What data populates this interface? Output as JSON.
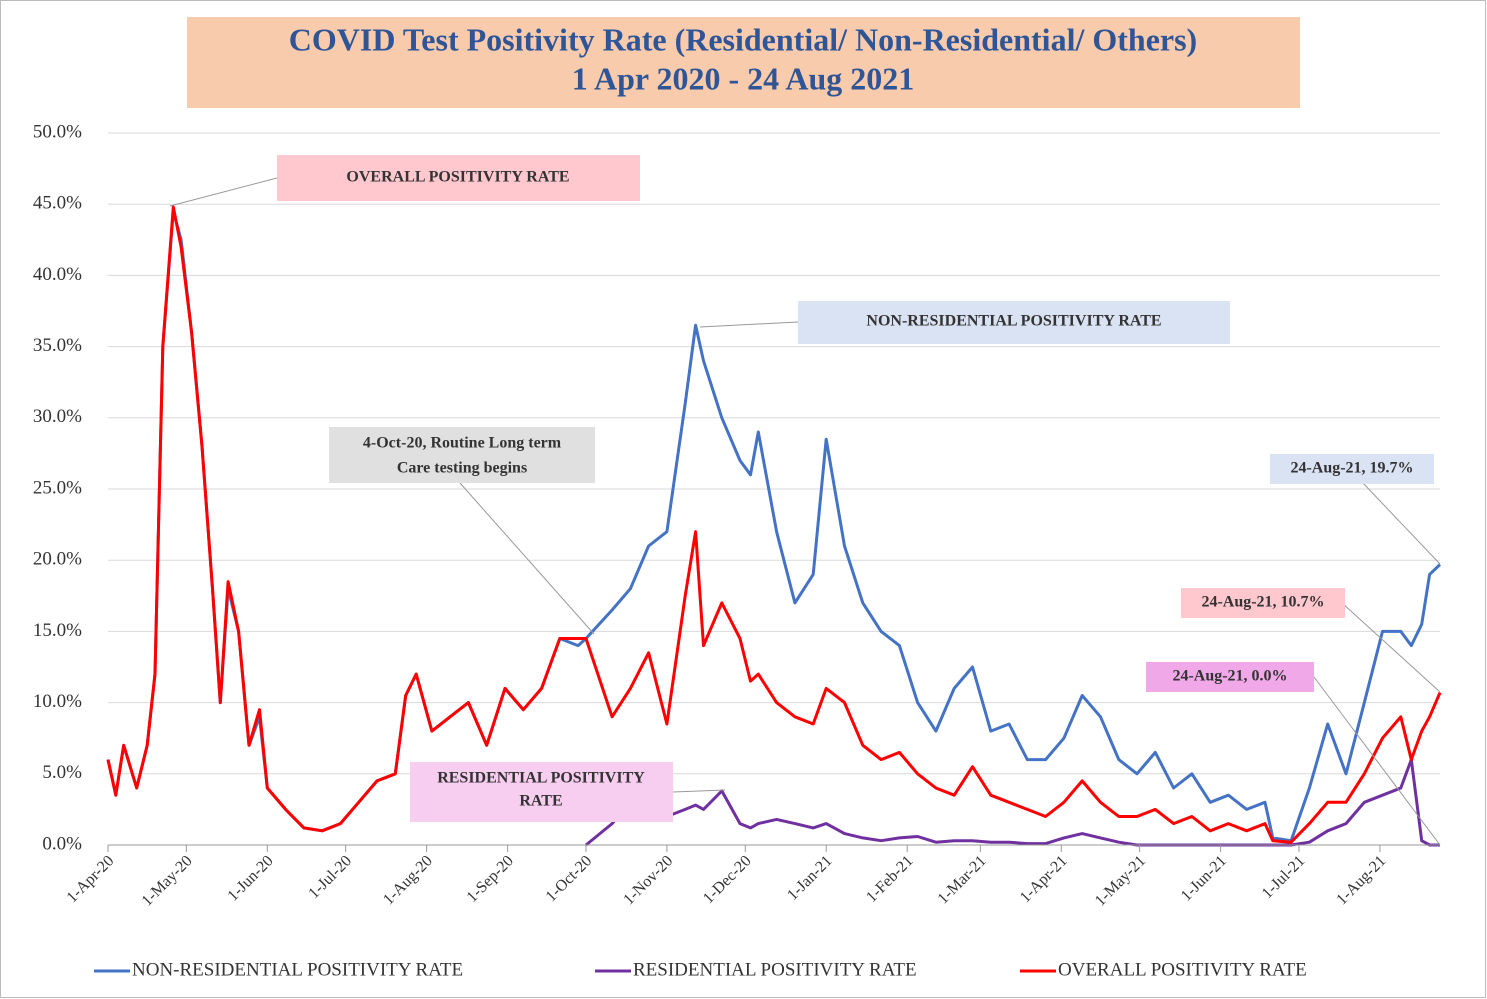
{
  "chart_data": {
    "type": "line",
    "title": "COVID Test Positivity Rate (Residential/ Non-Residential/ Others)",
    "subtitle": "1 Apr 2020 - 24 Aug 2021",
    "x": [
      "1-Apr-20",
      "4-Apr-20",
      "7-Apr-20",
      "12-Apr-20",
      "16-Apr-20",
      "19-Apr-20",
      "22-Apr-20",
      "26-Apr-20",
      "29-Apr-20",
      "3-May-20",
      "7-May-20",
      "11-May-20",
      "14-May-20",
      "17-May-20",
      "21-May-20",
      "25-May-20",
      "29-May-20",
      "1-Jun-20",
      "8-Jun-20",
      "15-Jun-20",
      "22-Jun-20",
      "29-Jun-20",
      "6-Jul-20",
      "13-Jul-20",
      "20-Jul-20",
      "24-Jul-20",
      "28-Jul-20",
      "3-Aug-20",
      "10-Aug-20",
      "17-Aug-20",
      "24-Aug-20",
      "31-Aug-20",
      "7-Sep-20",
      "14-Sep-20",
      "21-Sep-20",
      "28-Sep-20",
      "1-Oct-20",
      "11-Oct-20",
      "18-Oct-20",
      "25-Oct-20",
      "1-Nov-20",
      "8-Nov-20",
      "12-Nov-20",
      "15-Nov-20",
      "22-Nov-20",
      "29-Nov-20",
      "3-Dec-20",
      "6-Dec-20",
      "13-Dec-20",
      "20-Dec-20",
      "27-Dec-20",
      "1-Jan-21",
      "8-Jan-21",
      "15-Jan-21",
      "22-Jan-21",
      "29-Jan-21",
      "5-Feb-21",
      "12-Feb-21",
      "19-Feb-21",
      "26-Feb-21",
      "5-Mar-21",
      "12-Mar-21",
      "19-Mar-21",
      "26-Mar-21",
      "2-Apr-21",
      "9-Apr-21",
      "16-Apr-21",
      "23-Apr-21",
      "30-Apr-21",
      "7-May-21",
      "14-May-21",
      "21-May-21",
      "28-May-21",
      "4-Jun-21",
      "11-Jun-21",
      "18-Jun-21",
      "21-Jun-21",
      "28-Jun-21",
      "5-Jul-21",
      "12-Jul-21",
      "19-Jul-21",
      "26-Jul-21",
      "2-Aug-21",
      "9-Aug-21",
      "13-Aug-21",
      "17-Aug-21",
      "20-Aug-21",
      "24-Aug-21"
    ],
    "series": [
      {
        "name": "NON-RESIDENTIAL POSITIVITY RATE",
        "color": "#4472c4",
        "values": [
          6,
          3.5,
          7,
          4,
          7,
          12,
          35,
          44.5,
          42.5,
          36,
          28,
          18,
          10,
          18,
          15,
          7,
          9,
          4,
          2.5,
          1.2,
          1,
          1.5,
          3,
          4.5,
          5,
          10.5,
          12,
          8,
          9,
          10,
          7,
          11,
          9.5,
          11,
          14.5,
          14,
          14.5,
          16.5,
          18,
          21,
          22,
          31,
          36.5,
          34,
          30,
          27,
          26,
          29,
          22,
          17,
          19,
          28.5,
          21,
          17,
          15,
          14,
          10,
          8,
          11,
          12.5,
          8,
          8.5,
          6,
          6,
          7.5,
          10.5,
          9,
          6,
          5,
          6.5,
          4,
          5,
          3,
          3.5,
          2.5,
          3,
          0.5,
          0.3,
          4,
          8.5,
          5,
          10,
          15,
          15,
          14,
          15.5,
          19,
          19.7
        ]
      },
      {
        "name": "RESIDENTIAL POSITIVITY RATE",
        "color": "#7030a0",
        "values": [
          null,
          null,
          null,
          null,
          null,
          null,
          null,
          null,
          null,
          null,
          null,
          null,
          null,
          null,
          null,
          null,
          null,
          null,
          null,
          null,
          null,
          null,
          null,
          null,
          null,
          null,
          null,
          null,
          null,
          null,
          null,
          null,
          null,
          null,
          null,
          null,
          0,
          1.5,
          3,
          3.5,
          2,
          2.5,
          2.8,
          2.5,
          3.8,
          1.5,
          1.2,
          1.5,
          1.8,
          1.5,
          1.2,
          1.5,
          0.8,
          0.5,
          0.3,
          0.5,
          0.6,
          0.2,
          0.3,
          0.3,
          0.2,
          0.2,
          0.1,
          0.1,
          0.5,
          0.8,
          0.5,
          0.2,
          0,
          0,
          0,
          0,
          0,
          0,
          0,
          0,
          0,
          0,
          0.2,
          1,
          1.5,
          3,
          3.5,
          4,
          6,
          0.3,
          0,
          0
        ]
      },
      {
        "name": "OVERALL POSITIVITY RATE",
        "color": "#ff0000",
        "values": [
          6,
          3.5,
          7,
          4,
          7,
          12,
          35,
          44.8,
          42,
          36,
          28,
          18,
          10,
          18.5,
          15,
          7,
          9.5,
          4,
          2.5,
          1.2,
          1,
          1.5,
          3,
          4.5,
          5,
          10.5,
          12,
          8,
          9,
          10,
          7,
          11,
          9.5,
          11,
          14.5,
          14.5,
          14.5,
          9,
          11,
          13.5,
          8.5,
          17.5,
          22,
          14,
          17,
          14.5,
          11.5,
          12,
          10,
          9,
          8.5,
          11,
          10,
          7,
          6,
          6.5,
          5,
          4,
          3.5,
          5.5,
          3.5,
          3,
          2.5,
          2,
          3,
          4.5,
          3,
          2,
          2,
          2.5,
          1.5,
          2,
          1,
          1.5,
          1,
          1.5,
          0.3,
          0.2,
          1.5,
          3,
          3,
          5,
          7.5,
          9,
          6,
          8,
          9,
          10.7
        ]
      }
    ],
    "xlim": [
      "1-Apr-20",
      "24-Aug-21"
    ],
    "xticks": [
      "1-Apr-20",
      "1-May-20",
      "1-Jun-20",
      "1-Jul-20",
      "1-Aug-20",
      "1-Sep-20",
      "1-Oct-20",
      "1-Nov-20",
      "1-Dec-20",
      "1-Jan-21",
      "1-Feb-21",
      "1-Mar-21",
      "1-Apr-21",
      "1-May-21",
      "1-Jun-21",
      "1-Jul-21",
      "1-Aug-21"
    ],
    "ylim": [
      0,
      50
    ],
    "yticks": [
      {
        "value": 0,
        "label": "0.0%"
      },
      {
        "value": 5,
        "label": "5.0%"
      },
      {
        "value": 10,
        "label": "10.0%"
      },
      {
        "value": 15,
        "label": "15.0%"
      },
      {
        "value": 20,
        "label": "20.0%"
      },
      {
        "value": 25,
        "label": "25.0%"
      },
      {
        "value": 30,
        "label": "30.0%"
      },
      {
        "value": 35,
        "label": "35.0%"
      },
      {
        "value": 40,
        "label": "40.0%"
      },
      {
        "value": 45,
        "label": "45.0%"
      },
      {
        "value": 50,
        "label": "50.0%"
      }
    ],
    "grid": true,
    "legend": "bottom",
    "annotations": [
      {
        "text": "OVERALL POSITIVITY RATE"
      },
      {
        "text": "NON-RESIDENTIAL POSITIVITY RATE"
      },
      {
        "text": "4-Oct-20, Routine Long term"
      },
      {
        "text": "Care testing begins"
      },
      {
        "text": "RESIDENTIAL POSITIVITY"
      },
      {
        "text": "RATE"
      },
      {
        "text": "24-Aug-21, 19.7%"
      },
      {
        "text": "24-Aug-21, 10.7%"
      },
      {
        "text": "24-Aug-21, 0.0%"
      }
    ]
  }
}
